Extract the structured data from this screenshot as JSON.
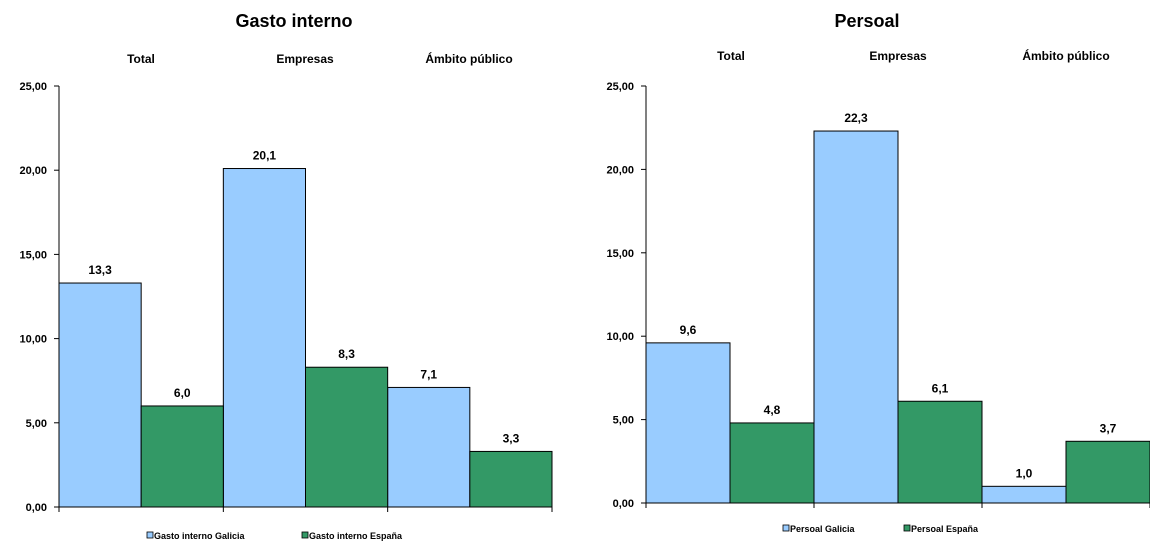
{
  "chart_data": [
    {
      "type": "bar",
      "title": "Gasto interno",
      "categories": [
        "Total",
        "Empresas",
        "Ámbito público"
      ],
      "series": [
        {
          "name": "Gasto interno Galicia",
          "values": [
            13.3,
            20.1,
            7.1
          ],
          "labels": [
            "13,3",
            "20,1",
            "7,1"
          ],
          "color": "#99ccff"
        },
        {
          "name": "Gasto interno España",
          "values": [
            6.0,
            8.3,
            3.3
          ],
          "labels": [
            "6,0",
            "8,3",
            "3,3"
          ],
          "color": "#339966"
        }
      ],
      "yticks": [
        "0,00",
        "5,00",
        "10,00",
        "15,00",
        "20,00",
        "25,00"
      ],
      "ylim": [
        0,
        25
      ],
      "grid": false,
      "legend_position": "bottom"
    },
    {
      "type": "bar",
      "title": "Persoal",
      "categories": [
        "Total",
        "Empresas",
        "Ámbito público"
      ],
      "series": [
        {
          "name": "Persoal Galicia",
          "values": [
            9.6,
            22.3,
            1.0
          ],
          "labels": [
            "9,6",
            "22,3",
            "1,0"
          ],
          "color": "#99ccff"
        },
        {
          "name": "Persoal España",
          "values": [
            4.8,
            6.1,
            3.7
          ],
          "labels": [
            "4,8",
            "6,1",
            "3,7"
          ],
          "color": "#339966"
        }
      ],
      "yticks": [
        "0,00",
        "5,00",
        "10,00",
        "15,00",
        "20,00",
        "25,00"
      ],
      "ylim": [
        0,
        25
      ],
      "grid": false,
      "legend_position": "bottom"
    }
  ]
}
